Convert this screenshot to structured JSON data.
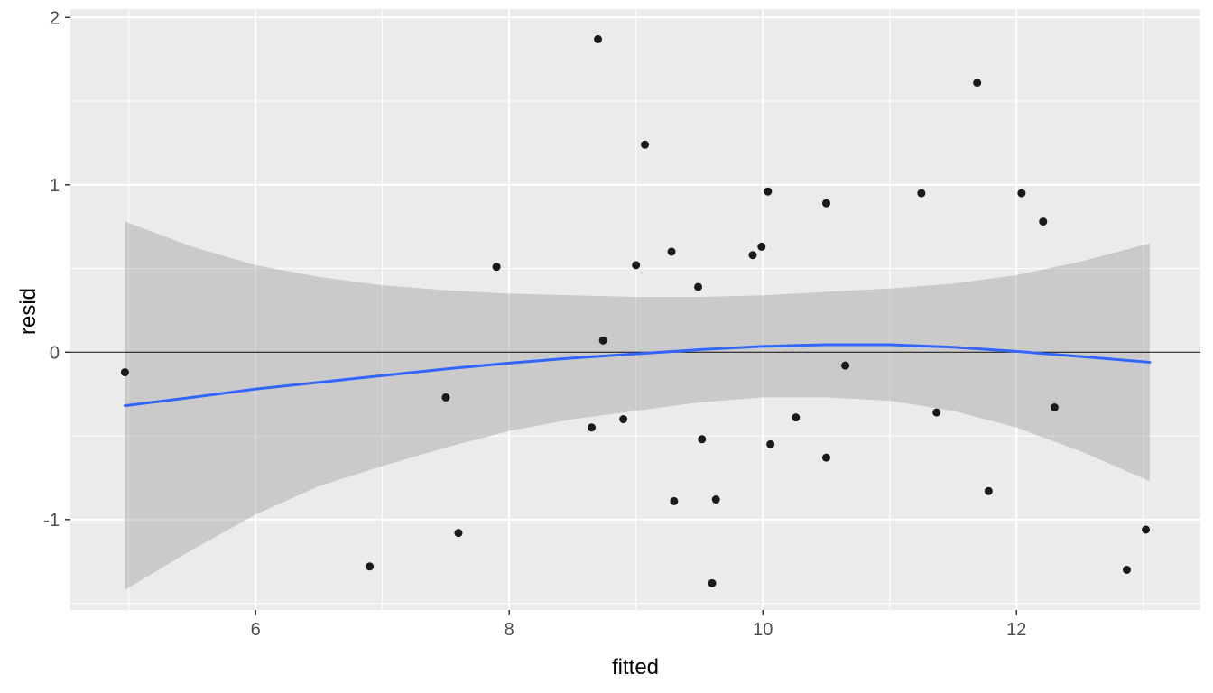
{
  "chart_data": {
    "type": "scatter",
    "title": "",
    "xlabel": "fitted",
    "ylabel": "resid",
    "xlim": [
      4.54,
      13.45
    ],
    "ylim": [
      -1.54,
      2.05
    ],
    "x_ticks": [
      6,
      8,
      10,
      12
    ],
    "y_ticks": [
      -1,
      0,
      1,
      2
    ],
    "x_minor_ticks": [
      5,
      7,
      9,
      11,
      13
    ],
    "y_minor_ticks": [
      -1.5,
      -0.5,
      0.5,
      1.5
    ],
    "grid": true,
    "legend": "none",
    "zero_line_y": 0,
    "points": [
      [
        4.97,
        -0.12
      ],
      [
        6.9,
        -1.28
      ],
      [
        7.5,
        -0.27
      ],
      [
        7.6,
        -1.08
      ],
      [
        7.9,
        0.51
      ],
      [
        8.65,
        -0.45
      ],
      [
        8.7,
        1.87
      ],
      [
        8.74,
        0.07
      ],
      [
        8.9,
        -0.4
      ],
      [
        9.0,
        0.52
      ],
      [
        9.07,
        1.24
      ],
      [
        9.28,
        0.6
      ],
      [
        9.3,
        -0.89
      ],
      [
        9.49,
        0.39
      ],
      [
        9.52,
        -0.52
      ],
      [
        9.6,
        -1.38
      ],
      [
        9.63,
        -0.88
      ],
      [
        9.92,
        0.58
      ],
      [
        9.99,
        0.63
      ],
      [
        10.04,
        0.96
      ],
      [
        10.06,
        -0.55
      ],
      [
        10.26,
        -0.39
      ],
      [
        10.5,
        0.89
      ],
      [
        10.5,
        -0.63
      ],
      [
        10.65,
        -0.08
      ],
      [
        11.25,
        0.95
      ],
      [
        11.37,
        -0.36
      ],
      [
        11.69,
        1.61
      ],
      [
        11.78,
        -0.83
      ],
      [
        12.04,
        0.95
      ],
      [
        12.21,
        0.78
      ],
      [
        12.3,
        -0.33
      ],
      [
        12.87,
        -1.3
      ],
      [
        13.02,
        -1.06
      ]
    ],
    "smooth_line": {
      "x": [
        4.97,
        5.5,
        6.0,
        6.5,
        7.0,
        7.5,
        8.0,
        8.5,
        9.0,
        9.5,
        10.0,
        10.5,
        11.0,
        11.5,
        12.0,
        12.5,
        13.05
      ],
      "y": [
        -0.32,
        -0.27,
        -0.22,
        -0.18,
        -0.14,
        -0.1,
        -0.065,
        -0.035,
        -0.01,
        0.015,
        0.035,
        0.045,
        0.045,
        0.03,
        0.005,
        -0.025,
        -0.06
      ]
    },
    "confidence_ribbon": {
      "x": [
        4.97,
        5.5,
        6.0,
        6.5,
        7.0,
        7.5,
        8.0,
        8.5,
        9.0,
        9.5,
        10.0,
        10.5,
        11.0,
        11.5,
        12.0,
        12.5,
        13.05
      ],
      "upper": [
        0.78,
        0.63,
        0.52,
        0.45,
        0.4,
        0.37,
        0.35,
        0.34,
        0.33,
        0.33,
        0.34,
        0.36,
        0.38,
        0.41,
        0.46,
        0.54,
        0.65
      ],
      "lower": [
        -1.42,
        -1.18,
        -0.97,
        -0.8,
        -0.68,
        -0.57,
        -0.47,
        -0.4,
        -0.35,
        -0.3,
        -0.27,
        -0.27,
        -0.29,
        -0.35,
        -0.45,
        -0.59,
        -0.77
      ]
    },
    "colors": {
      "panel_background": "#EBEBEB",
      "gridline": "#FFFFFF",
      "point": "#1A1A1A",
      "smooth_line": "#3366FF",
      "ribbon_fill": "#999999",
      "ribbon_opacity": 0.4,
      "zero_line": "#000000",
      "tick_label": "#4D4D4D",
      "tick_mark": "#333333",
      "axis_title": "#000000"
    }
  }
}
